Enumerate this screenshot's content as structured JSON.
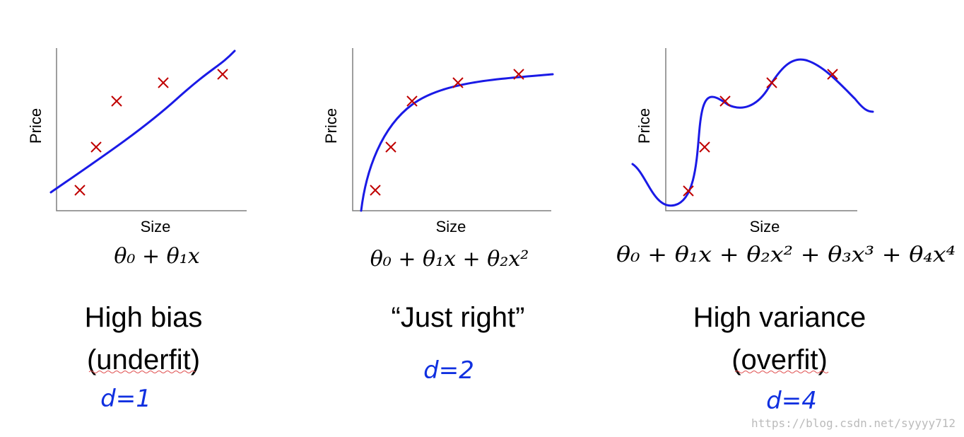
{
  "panels": [
    {
      "y_label": "Price",
      "x_label": "Size",
      "formula": "θ₀ + θ₁x",
      "caption": [
        "High bias",
        "(underfit)"
      ],
      "note": "d=1"
    },
    {
      "y_label": "Price",
      "x_label": "Size",
      "formula": "θ₀ + θ₁x + θ₂x²",
      "caption": [
        "“Just right”"
      ],
      "note": "d=2"
    },
    {
      "y_label": "Price",
      "x_label": "Size",
      "formula": "θ₀ + θ₁x + θ₂x² + θ₃x³ + θ₄x⁴",
      "caption": [
        "High variance",
        "(overfit)"
      ],
      "note": "d=4"
    }
  ],
  "watermark": "https://blog.csdn.net/syyyy712"
}
